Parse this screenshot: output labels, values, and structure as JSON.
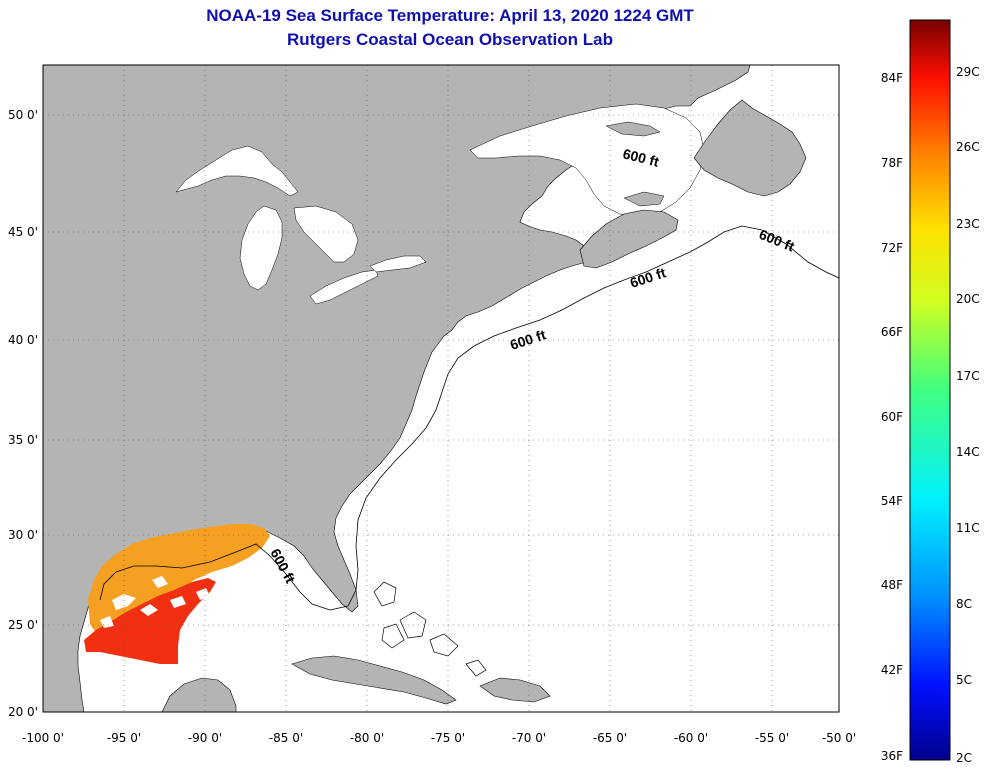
{
  "title": {
    "line1": "NOAA-19 Sea Surface Temperature:  April 13, 2020 1224 GMT",
    "line2": "Rutgers Coastal Ocean Observation Lab"
  },
  "axes": {
    "lon_ticks": [
      "-100 0'",
      "-95 0'",
      "-90 0'",
      "-85 0'",
      "-80 0'",
      "-75 0'",
      "-70 0'",
      "-65 0'",
      "-60 0'",
      "-55 0'",
      "-50 0'"
    ],
    "lat_ticks": [
      "50 0'",
      "45 0'",
      "40 0'",
      "35 0'",
      "30 0'",
      "25 0'",
      "20 0'"
    ]
  },
  "contour_label": "600 ft",
  "colorbar": {
    "fahrenheit": [
      "84F",
      "78F",
      "72F",
      "66F",
      "60F",
      "54F",
      "48F",
      "42F",
      "36F"
    ],
    "celsius": [
      "29C",
      "26C",
      "23C",
      "20C",
      "17C",
      "14C",
      "11C",
      "8C",
      "5C",
      "2C"
    ]
  },
  "colors": {
    "land": "#b4b4b4",
    "title": "#1010b0",
    "sst_warm": "#f5a020",
    "sst_hot": "#f03010"
  }
}
